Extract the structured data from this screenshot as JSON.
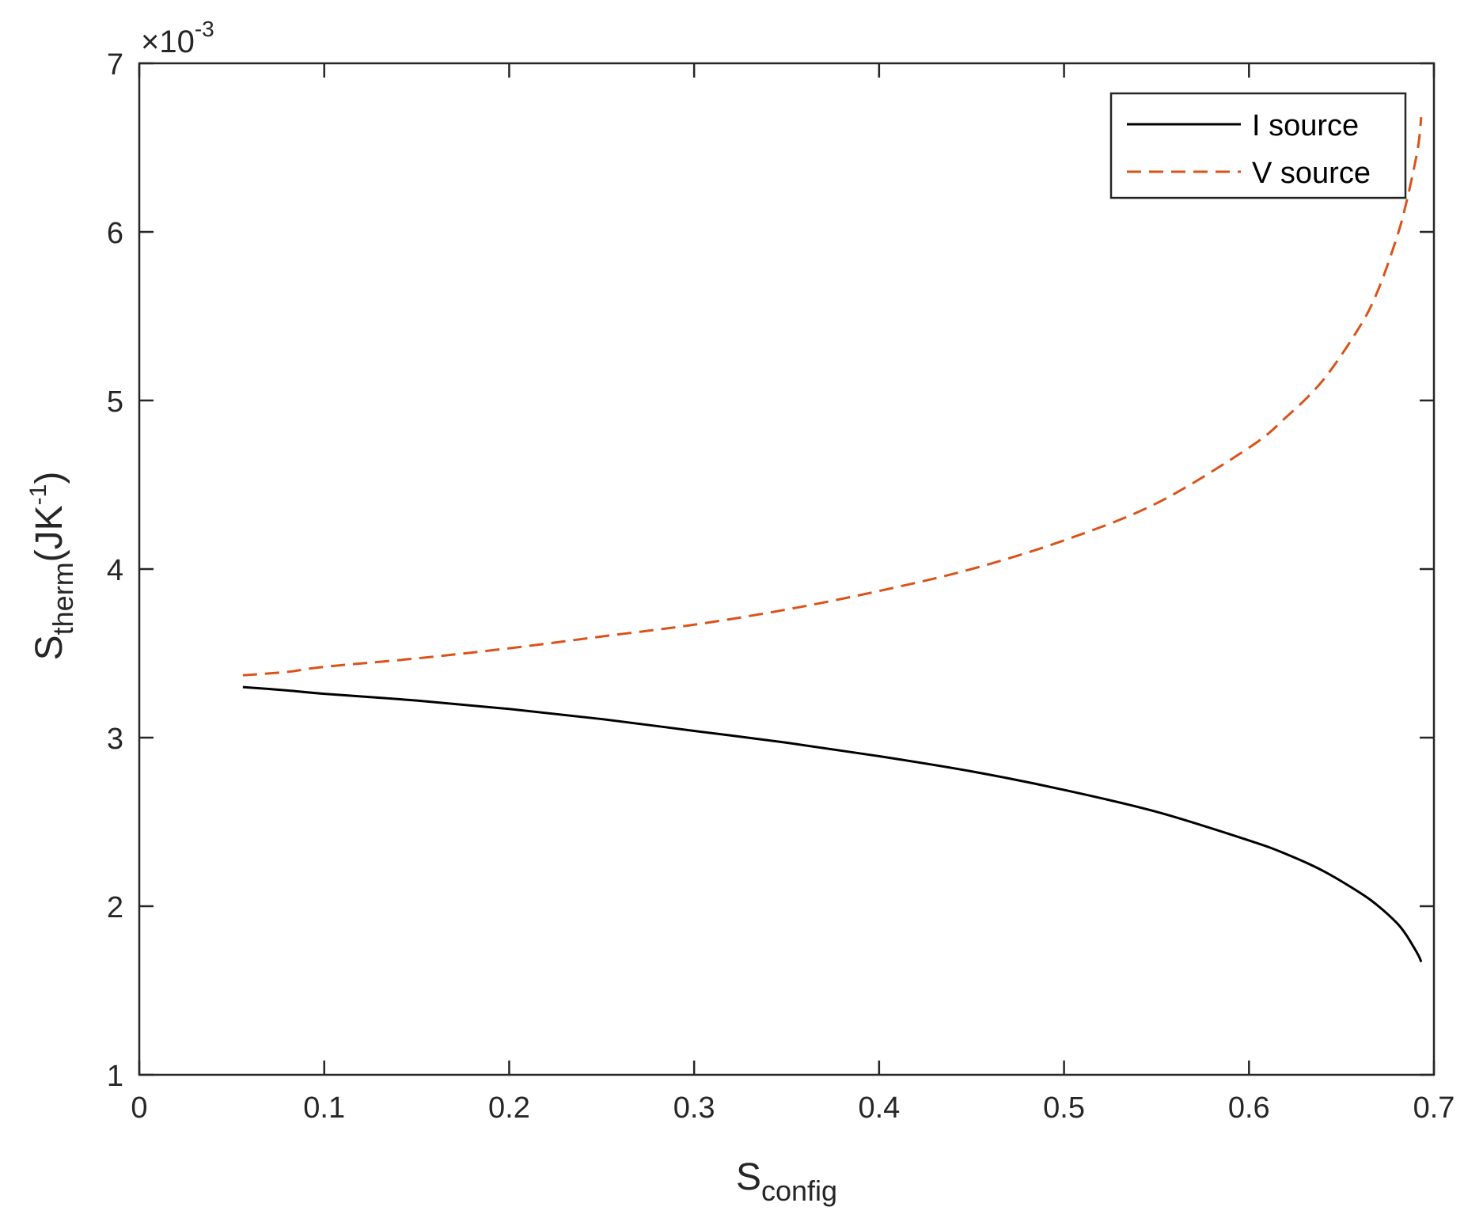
{
  "chart_data": {
    "type": "line",
    "xlabel": {
      "main": "S",
      "sub": "config"
    },
    "ylabel": {
      "main": "S",
      "sub": "therm",
      "unit_main": "(JK",
      "unit_sup": "-1",
      "unit_close": ")"
    },
    "y_exponent": {
      "prefix": "×10",
      "power": "-3"
    },
    "xlim": [
      0,
      0.7
    ],
    "ylim": [
      1,
      7
    ],
    "xticks": [
      "0",
      "0.1",
      "0.2",
      "0.3",
      "0.4",
      "0.5",
      "0.6",
      "0.7"
    ],
    "yticks": [
      "1",
      "2",
      "3",
      "4",
      "5",
      "6",
      "7"
    ],
    "legend_position": "top-right",
    "grid": false,
    "series": [
      {
        "name": "I source",
        "color": "#000000",
        "style": "solid",
        "x": [
          0.056,
          0.08,
          0.1,
          0.15,
          0.2,
          0.25,
          0.3,
          0.35,
          0.4,
          0.45,
          0.5,
          0.55,
          0.6,
          0.62,
          0.64,
          0.66,
          0.67,
          0.68,
          0.685,
          0.69,
          0.692,
          0.6931
        ],
        "y": [
          3.3,
          3.28,
          3.26,
          3.22,
          3.17,
          3.11,
          3.04,
          2.97,
          2.89,
          2.8,
          2.69,
          2.56,
          2.39,
          2.31,
          2.21,
          2.08,
          2.0,
          1.9,
          1.83,
          1.74,
          1.7,
          1.67
        ]
      },
      {
        "name": "V source",
        "color": "#D95319",
        "style": "dashed",
        "x": [
          0.056,
          0.08,
          0.1,
          0.15,
          0.2,
          0.25,
          0.3,
          0.35,
          0.4,
          0.45,
          0.5,
          0.55,
          0.6,
          0.62,
          0.64,
          0.66,
          0.67,
          0.68,
          0.685,
          0.69,
          0.692,
          0.6931
        ],
        "y": [
          3.37,
          3.39,
          3.42,
          3.47,
          3.53,
          3.6,
          3.67,
          3.76,
          3.87,
          4.0,
          4.17,
          4.39,
          4.72,
          4.9,
          5.12,
          5.44,
          5.66,
          5.97,
          6.17,
          6.42,
          6.55,
          6.68
        ]
      }
    ]
  }
}
